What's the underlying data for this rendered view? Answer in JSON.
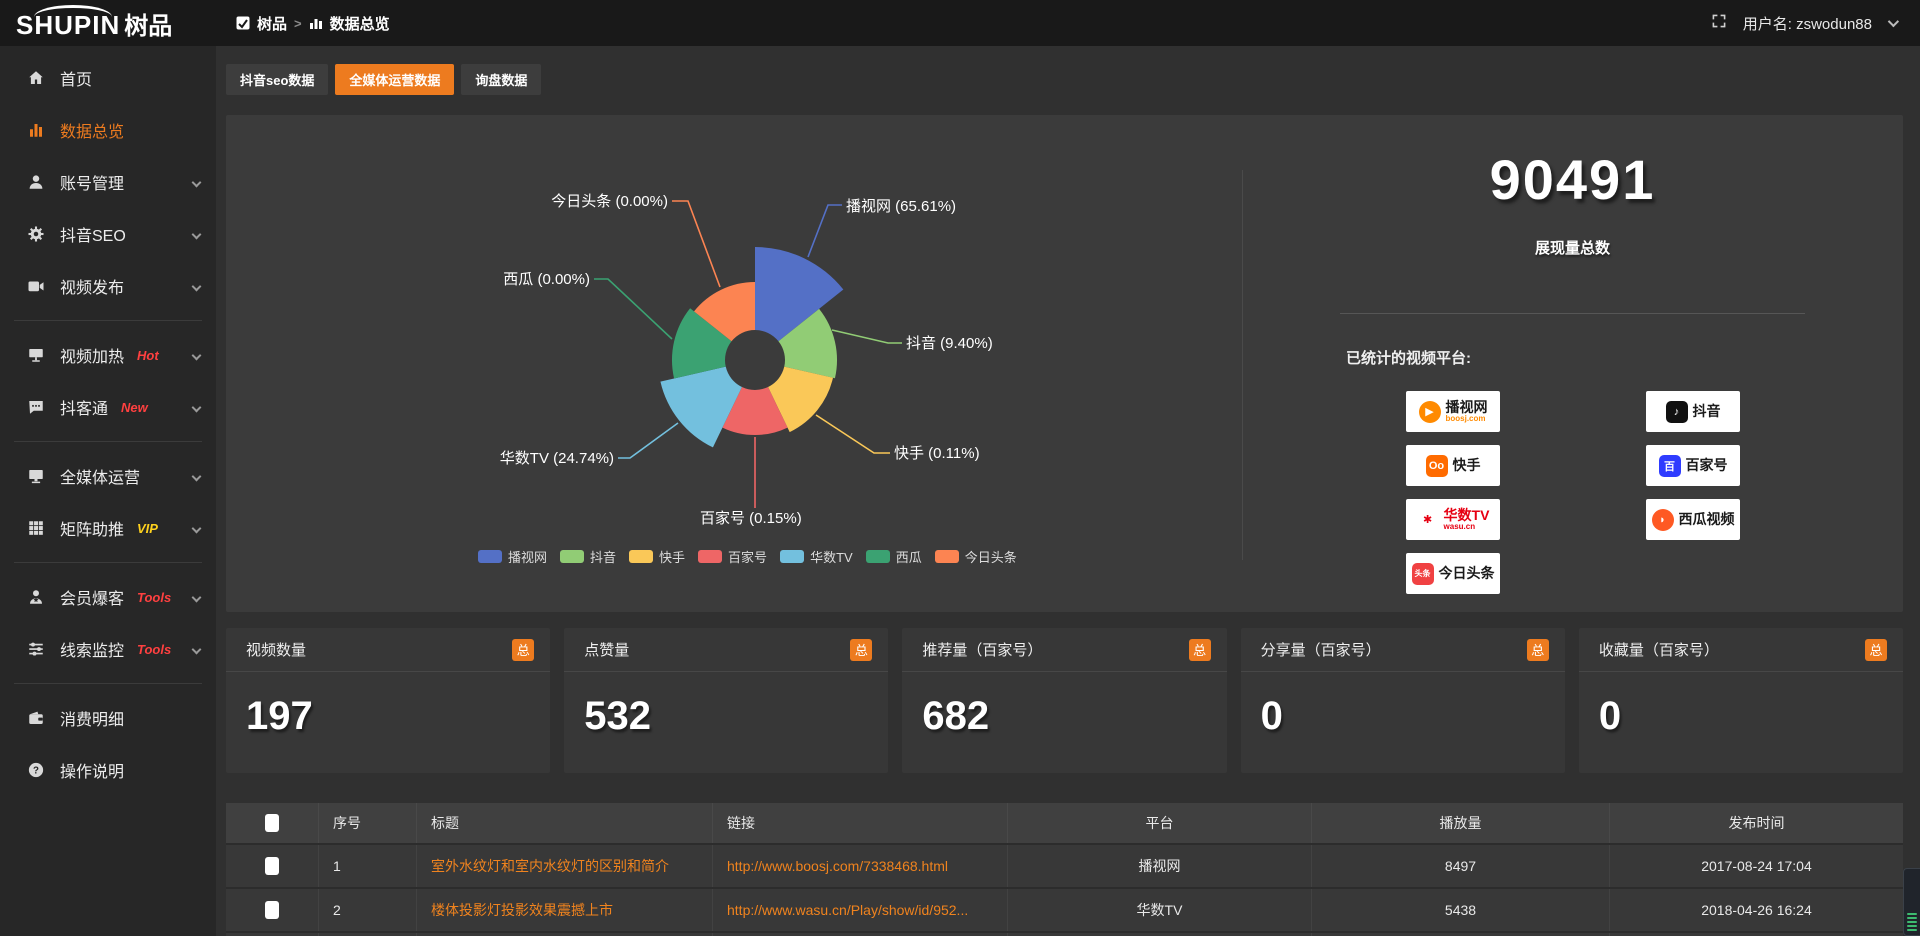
{
  "topbar": {
    "logo_text_en": "SHUPIN",
    "logo_text_cn": "树品",
    "breadcrumb": {
      "root": "树品",
      "separator": ">",
      "current": "数据总览"
    },
    "user_label": "用户名: zswodun88"
  },
  "sidebar": {
    "items": [
      {
        "icon": "home-icon",
        "label": "首页"
      },
      {
        "icon": "bar-chart-icon",
        "label": "数据总览",
        "active": true
      },
      {
        "icon": "user-icon",
        "label": "账号管理",
        "chevron": true
      },
      {
        "icon": "gear-icon",
        "label": "抖音SEO",
        "chevron": true
      },
      {
        "icon": "video-icon",
        "label": "视频发布",
        "chevron": true
      },
      {
        "divider": true
      },
      {
        "icon": "heat-icon",
        "label": "视频加热",
        "badge": "Hot",
        "badge_color": "#ff4040",
        "chevron": true
      },
      {
        "icon": "chat-icon",
        "label": "抖客通",
        "badge": "New",
        "badge_color": "#ff4040",
        "chevron": true
      },
      {
        "divider": true
      },
      {
        "icon": "monitor-icon",
        "label": "全媒体运营",
        "chevron": true
      },
      {
        "icon": "grid-icon",
        "label": "矩阵助推",
        "badge": "VIP",
        "badge_color": "#ffd21e",
        "chevron": true
      },
      {
        "divider": true
      },
      {
        "icon": "member-icon",
        "label": "会员爆客",
        "badge": "Tools",
        "badge_color": "#ff4040",
        "chevron": true
      },
      {
        "icon": "sliders-icon",
        "label": "线索监控",
        "badge": "Tools",
        "badge_color": "#ff4040",
        "chevron": true
      },
      {
        "divider": true
      },
      {
        "icon": "wallet-icon",
        "label": "消费明细"
      },
      {
        "icon": "question-icon",
        "label": "操作说明"
      }
    ]
  },
  "tabs": [
    {
      "label": "抖音seo数据",
      "active": false
    },
    {
      "label": "全媒体运营数据",
      "active": true
    },
    {
      "label": "询盘数据",
      "active": false
    }
  ],
  "chart_data": {
    "type": "pie",
    "variant": "nightingale-rose",
    "items": [
      {
        "name": "播视网",
        "percent": 65.61,
        "color": "#5470c6",
        "rose_radius": 113
      },
      {
        "name": "抖音",
        "percent": 9.4,
        "color": "#91cc75",
        "rose_radius": 82
      },
      {
        "name": "快手",
        "percent": 0.11,
        "color": "#fac858",
        "rose_radius": 80
      },
      {
        "name": "百家号",
        "percent": 0.15,
        "color": "#ee6666",
        "rose_radius": 75
      },
      {
        "name": "华数TV",
        "percent": 24.74,
        "color": "#73c0de",
        "rose_radius": 97
      },
      {
        "name": "西瓜",
        "percent": 0.0,
        "color": "#3ba272",
        "rose_radius": 83
      },
      {
        "name": "今日头条",
        "percent": 0.0,
        "color": "#fc8452",
        "rose_radius": 78
      }
    ],
    "inner_radius": 30,
    "label_format": "{name} ({percent}%)",
    "legend": [
      "播视网",
      "抖音",
      "快手",
      "百家号",
      "华数TV",
      "西瓜",
      "今日头条"
    ],
    "legend_position": "bottom"
  },
  "summary": {
    "total_value": "90491",
    "total_label": "展现量总数",
    "platforms_title": "已统计的视频平台:",
    "platforms": [
      {
        "name": "播视网",
        "sub": "boosj.com",
        "icon": "boosj-play-icon"
      },
      {
        "name": "抖音",
        "icon": "douyin-note-icon"
      },
      {
        "name": "快手",
        "icon": "kuaishou-icon"
      },
      {
        "name": "百家号",
        "icon": "baijiahao-icon"
      },
      {
        "name": "华数TV",
        "sub": "wasu.cn",
        "icon": "wasu-star-icon"
      },
      {
        "name": "西瓜视频",
        "icon": "xigua-icon"
      },
      {
        "name": "今日头条",
        "icon": "toutiao-icon"
      }
    ]
  },
  "stat_cards": [
    {
      "title": "视频数量",
      "badge": "总",
      "value": "197"
    },
    {
      "title": "点赞量",
      "badge": "总",
      "value": "532"
    },
    {
      "title": "推荐量（百家号）",
      "badge": "总",
      "value": "682"
    },
    {
      "title": "分享量（百家号）",
      "badge": "总",
      "value": "0"
    },
    {
      "title": "收藏量（百家号）",
      "badge": "总",
      "value": "0"
    }
  ],
  "table": {
    "columns": [
      "序号",
      "标题",
      "链接",
      "平台",
      "播放量",
      "发布时间"
    ],
    "rows": [
      {
        "num": "1",
        "title": "室外水纹灯和室内水纹灯的区别和简介",
        "link": "http://www.boosj.com/7338468.html",
        "platform": "播视网",
        "plays": "8497",
        "time": "2017-08-24 17:04"
      },
      {
        "num": "2",
        "title": "楼体投影灯投影效果震撼上市",
        "link": "http://www.wasu.cn/Play/show/id/952...",
        "platform": "华数TV",
        "plays": "5438",
        "time": "2018-04-26 16:24"
      }
    ]
  },
  "colors": {
    "accent": "#ED7B1F",
    "link": "#f0831e",
    "hot_badge": "#ff4040",
    "vip_badge": "#ffd21e"
  }
}
